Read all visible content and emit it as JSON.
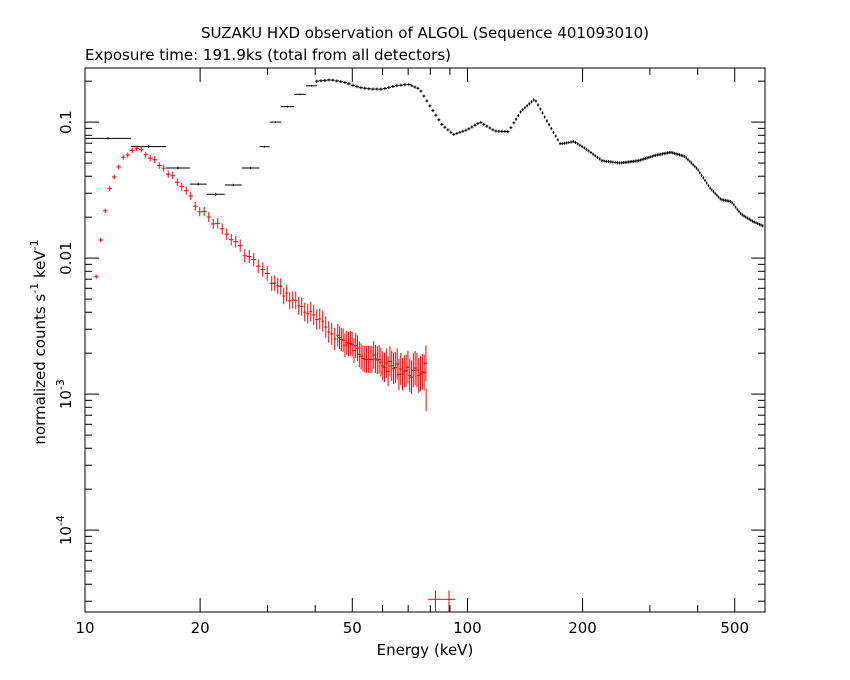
{
  "chart_data": {
    "type": "scatter",
    "title": "SUZAKU HXD observation of ALGOL (Sequence 401093010)",
    "subtitle": "Exposure time: 191.9ks (total from all detectors)",
    "xlabel": "Energy (keV)",
    "ylabel_main": "normalized counts s",
    "ylabel_exp1": "-1",
    "ylabel_mid": " keV",
    "ylabel_exp2": "-1",
    "xscale": "log",
    "yscale": "log",
    "xlim": [
      10,
      600
    ],
    "ylim": [
      2.5e-05,
      0.25
    ],
    "grid": false,
    "x_ticks": [
      {
        "v": 10,
        "label": "10"
      },
      {
        "v": 20,
        "label": "20"
      },
      {
        "v": 50,
        "label": "50"
      },
      {
        "v": 100,
        "label": "100"
      },
      {
        "v": 200,
        "label": "200"
      },
      {
        "v": 500,
        "label": "500"
      }
    ],
    "y_ticks": [
      {
        "v": 0.1,
        "label": "0.1",
        "base": "",
        "exp": ""
      },
      {
        "v": 0.01,
        "label": "0.01",
        "base": "",
        "exp": ""
      },
      {
        "v": 0.001,
        "label": "",
        "base": "10",
        "exp": "-3"
      },
      {
        "v": 0.0001,
        "label": "",
        "base": "10",
        "exp": "-4"
      }
    ],
    "series": [
      {
        "color": "#000000",
        "marker": "cross",
        "segments": [
          {
            "x": [
              10,
              13.2
            ],
            "y": 0.076,
            "ye": 0.0015
          },
          {
            "x": [
              13.2,
              16.3
            ],
            "y": 0.066,
            "ye": 0.0015
          },
          {
            "x": [
              16.3,
              18.8
            ],
            "y": 0.046,
            "ye": 0.001
          },
          {
            "x": [
              18.8,
              20.8
            ],
            "y": 0.035,
            "ye": 0.0008
          },
          {
            "x": [
              20.8,
              23.2
            ],
            "y": 0.0295,
            "ye": 0.0007
          },
          {
            "x": [
              23.2,
              25.7
            ],
            "y": 0.0345,
            "ye": 0.0007
          },
          {
            "x": [
              25.7,
              28.6
            ],
            "y": 0.046,
            "ye": 0.0008
          },
          {
            "x": [
              28.6,
              30.4
            ],
            "y": 0.066,
            "ye": 0.001
          },
          {
            "x": [
              30.4,
              32.6
            ],
            "y": 0.1,
            "ye": 0.0015
          },
          {
            "x": [
              32.6,
              35.2
            ],
            "y": 0.13,
            "ye": 0.002
          },
          {
            "x": [
              35.2,
              37.8
            ],
            "y": 0.16,
            "ye": 0.002
          },
          {
            "x": [
              37.8,
              40.4
            ],
            "y": 0.185,
            "ye": 0.0025
          }
        ],
        "curve_x": [
          40.4,
          44,
          48,
          52,
          56,
          60,
          65,
          70,
          75,
          80,
          86,
          92,
          100,
          108,
          118,
          128,
          138,
          150,
          162,
          175,
          190,
          205,
          225,
          250,
          280,
          310,
          340,
          370,
          400,
          430,
          460,
          490,
          520,
          560,
          600
        ],
        "curve_y": [
          0.2,
          0.205,
          0.195,
          0.18,
          0.175,
          0.175,
          0.185,
          0.19,
          0.175,
          0.13,
          0.095,
          0.081,
          0.088,
          0.1,
          0.086,
          0.085,
          0.12,
          0.148,
          0.1,
          0.069,
          0.072,
          0.063,
          0.052,
          0.05,
          0.052,
          0.057,
          0.06,
          0.056,
          0.045,
          0.033,
          0.027,
          0.026,
          0.021,
          0.0185,
          0.017
        ]
      },
      {
        "color": "#ff0000",
        "marker": "cross",
        "curve_x": [
          10.7,
          11.1,
          11.6,
          12.1,
          12.6,
          13.1,
          13.6,
          14.2,
          14.8,
          15.5,
          16.2,
          17.0,
          18.0,
          19.0,
          20.2,
          21.5,
          23.0,
          24.7,
          26.6,
          28.7,
          31.0,
          33.5,
          36.3,
          39.5,
          43.0,
          47.0,
          51.5,
          56.5,
          62.0,
          68.0,
          74.0,
          78.0
        ],
        "curve_y": [
          0.0073,
          0.017,
          0.032,
          0.044,
          0.054,
          0.061,
          0.064,
          0.061,
          0.055,
          0.049,
          0.044,
          0.039,
          0.033,
          0.027,
          0.022,
          0.019,
          0.016,
          0.013,
          0.0105,
          0.0085,
          0.0066,
          0.0054,
          0.0045,
          0.0037,
          0.003,
          0.0025,
          0.0021,
          0.0018,
          0.0016,
          0.0015,
          0.0014,
          0.0016
        ],
        "outliers": [
          {
            "x": 78,
            "y": 0.00092,
            "ye_lo": 0.00075,
            "ye_hi": 0.0011
          },
          {
            "x": 82.5,
            "y": 3.1e-05,
            "xlo": 79,
            "xhi": 86,
            "ye_lo": 2.7e-05,
            "ye_hi": 3.6e-05
          },
          {
            "x": 89.5,
            "y": 3.1e-05,
            "xlo": 86,
            "xhi": 93,
            "ye_lo": 2.7e-05,
            "ye_hi": 3.6e-05
          }
        ]
      }
    ]
  }
}
